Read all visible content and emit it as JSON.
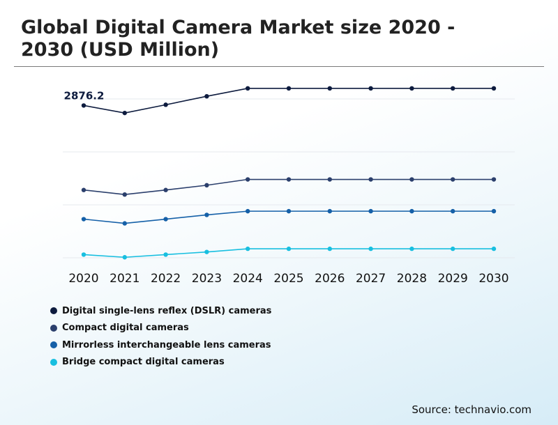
{
  "header": {
    "title": "Global Digital Camera Market size 2020 - 2030 (USD Million)"
  },
  "footer": {
    "source": "Source: technavio.com"
  },
  "chart_data": {
    "type": "line",
    "title": "Global Digital Camera Market size 2020 - 2030 (USD Million)",
    "xlabel": "",
    "ylabel": "",
    "grid": true,
    "legend_position": "bottom-left",
    "categories": [
      "2020",
      "2021",
      "2022",
      "2023",
      "2024",
      "2025",
      "2026",
      "2027",
      "2028",
      "2029",
      "2030"
    ],
    "ylim": [
      0,
      3500
    ],
    "annotations": [
      {
        "series": 0,
        "index": 0,
        "text": "2876.2"
      }
    ],
    "series": [
      {
        "name": "Digital single-lens reflex (DSLR) cameras",
        "color": "#0d1b3e",
        "values": [
          2876.2,
          2735,
          2890,
          3050,
          3200,
          3200,
          3200,
          3200,
          3200,
          3200,
          3200
        ]
      },
      {
        "name": "Compact digital cameras",
        "color": "#2b3f6c",
        "values": [
          1280,
          1195,
          1280,
          1370,
          1480,
          1480,
          1480,
          1480,
          1480,
          1480,
          1480
        ]
      },
      {
        "name": "Mirrorless interchangeable lens cameras",
        "color": "#1560a8",
        "values": [
          730,
          650,
          730,
          810,
          880,
          880,
          880,
          880,
          880,
          880,
          880
        ]
      },
      {
        "name": "Bridge compact digital cameras",
        "color": "#18bfe0",
        "values": [
          60,
          10,
          60,
          110,
          170,
          170,
          170,
          170,
          170,
          170,
          170
        ]
      }
    ]
  }
}
